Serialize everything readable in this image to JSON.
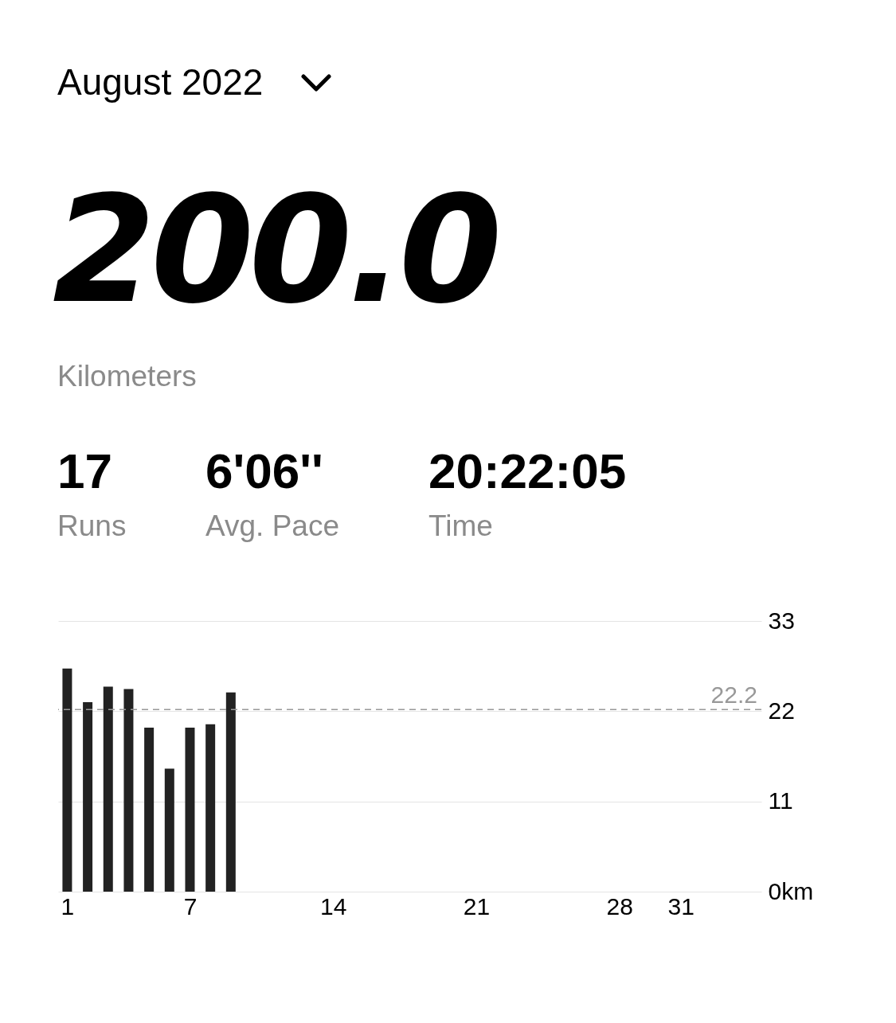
{
  "chart_data": {
    "type": "bar",
    "title": "August 2022",
    "annotations": [
      "200.0",
      "Kilometers",
      "17",
      "Runs",
      "6'06''",
      "Avg. Pace",
      "20:22:05",
      "Time"
    ],
    "x": [
      1,
      2,
      3,
      4,
      5,
      6,
      7,
      8,
      9
    ],
    "values": [
      27.2,
      23.1,
      25.0,
      24.7,
      20.0,
      15.0,
      20.0,
      20.4,
      24.3
    ],
    "color": "#222222",
    "xlim": [
      0.75,
      34.75
    ],
    "xticks": [
      1,
      7,
      14,
      21,
      28,
      31
    ],
    "ylim": [
      0,
      33
    ],
    "yticks": [
      {
        "value": 0,
        "label": "0km"
      },
      11,
      22,
      33
    ],
    "grid": "y",
    "ref_lines": [
      {
        "axis": "y",
        "value": 22.2,
        "label": "22.2",
        "color": "#999999",
        "line_style": "dashed"
      }
    ]
  }
}
